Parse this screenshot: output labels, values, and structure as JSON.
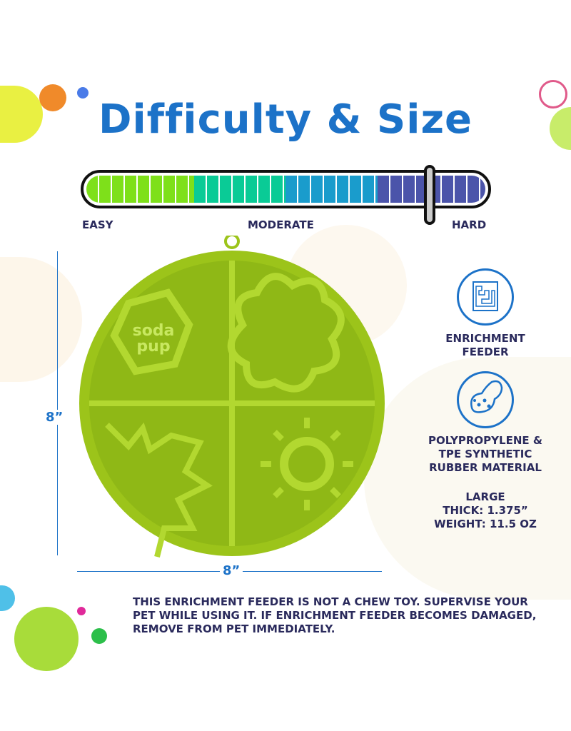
{
  "title": "Difficulty & Size",
  "difficulty": {
    "labels": [
      "EASY",
      "MODERATE",
      "HARD"
    ],
    "level": 0.85,
    "colors": [
      "#7ee01a",
      "#0acb96",
      "#1a9ccc",
      "#4b54aa"
    ]
  },
  "dimensions": {
    "height": "8”",
    "width": "8”"
  },
  "product": {
    "logo": "soda pup",
    "color": "#9cc41a"
  },
  "features": [
    {
      "icon": "puzzle-maze-icon",
      "label_lines": [
        "ENRICHMENT",
        "FEEDER"
      ]
    },
    {
      "icon": "peanut-molecule-icon",
      "label_lines": [
        "POLYPROPYLENE  &",
        "TPE SYNTHETIC",
        "RUBBER MATERIAL"
      ]
    }
  ],
  "specs": [
    "LARGE",
    "THICK: 1.375”",
    "WEIGHT: 11.5 OZ"
  ],
  "warning": [
    "THIS ENRICHMENT FEEDER IS NOT A CHEW TOY. SUPERVISE YOUR",
    "PET WHILE USING IT. IF ENRICHMENT FEEDER BECOMES DAMAGED,",
    "REMOVE FROM PET IMMEDIATELY."
  ]
}
